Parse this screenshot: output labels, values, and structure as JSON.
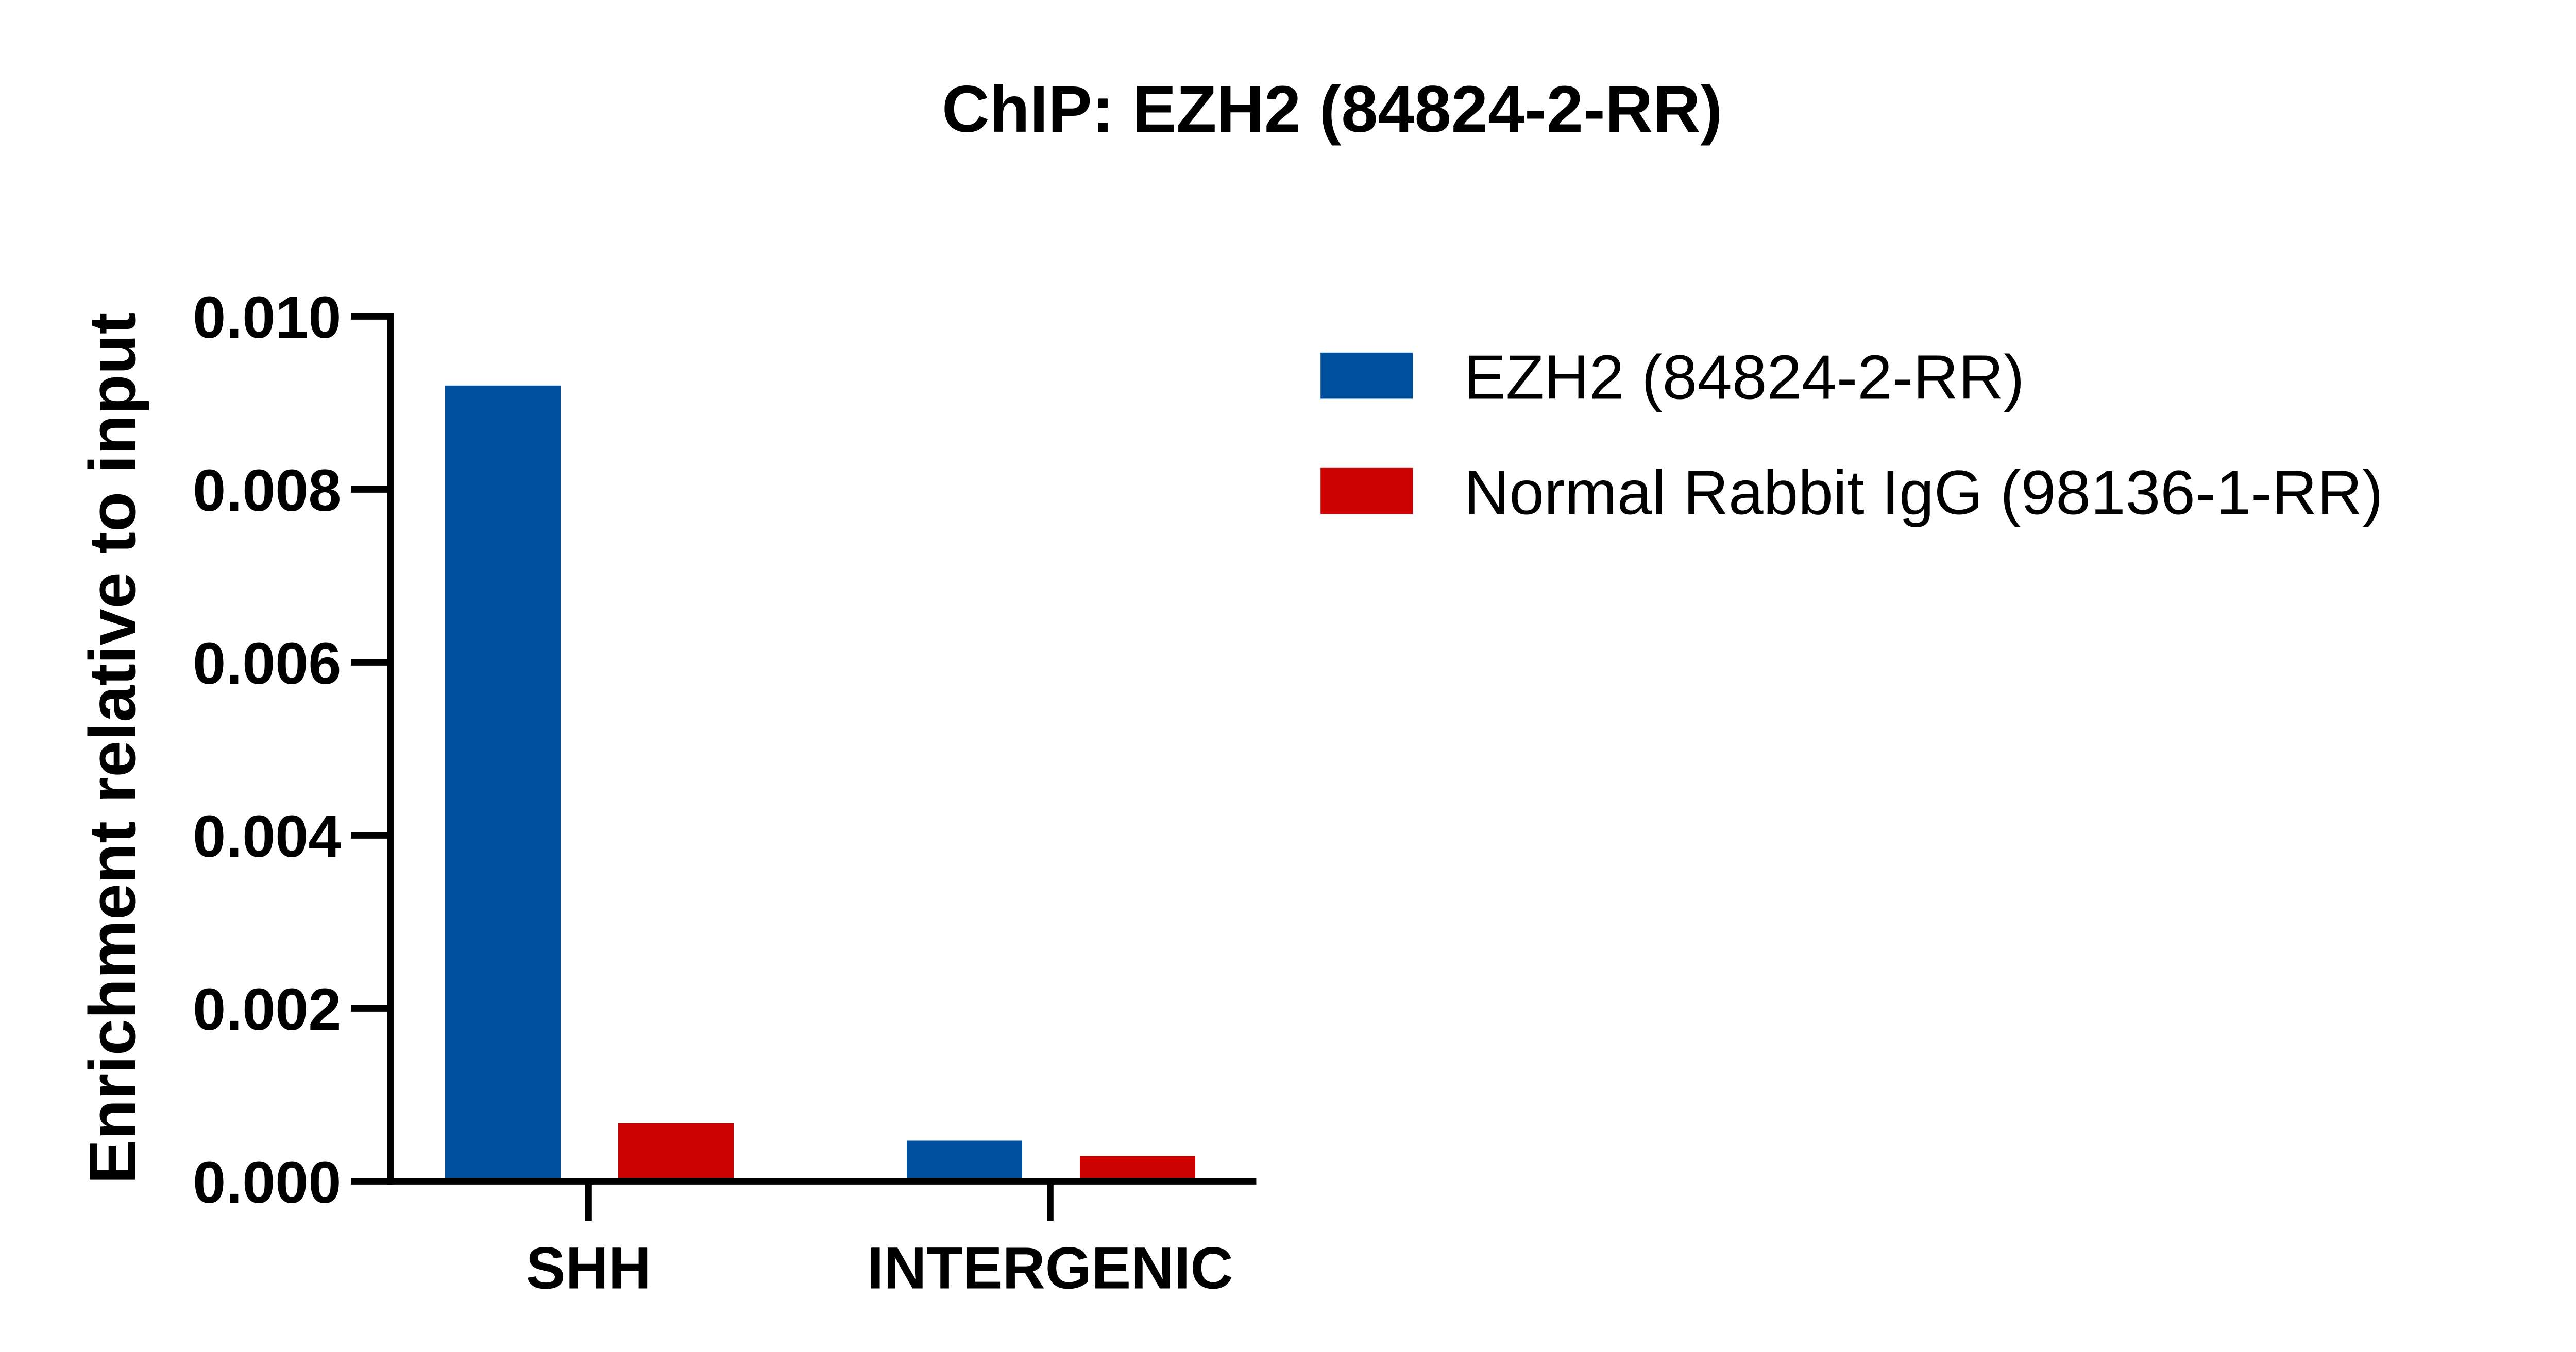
{
  "chart_data": {
    "type": "bar",
    "title": "ChIP: EZH2 (84824-2-RR)",
    "xlabel": "",
    "ylabel": "Enrichment relative to input",
    "categories": [
      "SHH",
      "INTERGENIC"
    ],
    "series": [
      {
        "name": "EZH2 (84824-2-RR)",
        "color": "#00509E",
        "values": [
          0.0092,
          0.00047
        ]
      },
      {
        "name": "Normal Rabbit IgG (98136-1-RR)",
        "color": "#CC0000",
        "values": [
          0.00067,
          0.00029
        ]
      }
    ],
    "ylim": [
      0,
      0.01
    ],
    "yticks": [
      "0.000",
      "0.002",
      "0.004",
      "0.006",
      "0.008",
      "0.010"
    ],
    "grid": false,
    "legend_position": "right"
  }
}
